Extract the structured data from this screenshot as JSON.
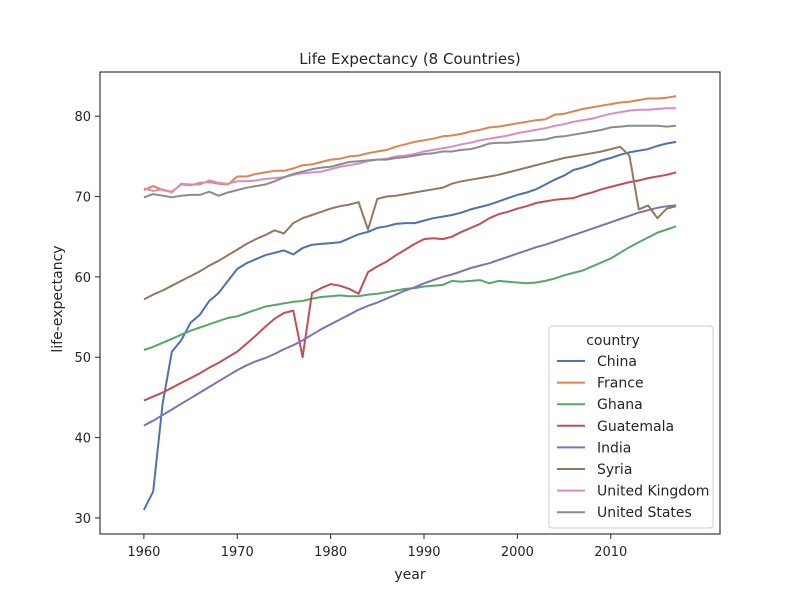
{
  "chart_data": {
    "type": "line",
    "title": "Life Expectancy (8 Countries)",
    "xlabel": "year",
    "ylabel": "life-expectancy",
    "xlim": [
      1955.3,
      2021.7
    ],
    "ylim": [
      28.0,
      85.5
    ],
    "xticks": [
      1960,
      1970,
      1980,
      1990,
      2000,
      2010
    ],
    "yticks": [
      30,
      40,
      50,
      60,
      70,
      80
    ],
    "grid": false,
    "legend": {
      "title": "country",
      "placement": "lower-right"
    },
    "x": [
      1960,
      1961,
      1962,
      1963,
      1964,
      1965,
      1966,
      1967,
      1968,
      1969,
      1970,
      1971,
      1972,
      1973,
      1974,
      1975,
      1976,
      1977,
      1978,
      1979,
      1980,
      1981,
      1982,
      1983,
      1984,
      1985,
      1986,
      1987,
      1988,
      1989,
      1990,
      1991,
      1992,
      1993,
      1994,
      1995,
      1996,
      1997,
      1998,
      1999,
      2000,
      2001,
      2002,
      2003,
      2004,
      2005,
      2006,
      2007,
      2008,
      2009,
      2010,
      2011,
      2012,
      2013,
      2014,
      2015,
      2016,
      2017
    ],
    "series": [
      {
        "name": "China",
        "color": "#4c72b0",
        "values": [
          31.0,
          33.3,
          44.2,
          50.7,
          52.1,
          54.3,
          55.3,
          57.0,
          58.0,
          59.5,
          61.0,
          61.7,
          62.2,
          62.7,
          63.0,
          63.3,
          62.8,
          63.6,
          64.0,
          64.1,
          64.2,
          64.3,
          64.8,
          65.3,
          65.6,
          66.1,
          66.3,
          66.6,
          66.7,
          66.7,
          67.0,
          67.3,
          67.5,
          67.7,
          68.0,
          68.4,
          68.7,
          69.0,
          69.4,
          69.8,
          70.2,
          70.5,
          70.9,
          71.5,
          72.1,
          72.6,
          73.3,
          73.6,
          74.0,
          74.5,
          74.8,
          75.2,
          75.5,
          75.7,
          75.9,
          76.3,
          76.6,
          76.8
        ]
      },
      {
        "name": "France",
        "color": "#dd8452",
        "values": [
          70.8,
          71.3,
          70.8,
          70.6,
          71.5,
          71.4,
          71.7,
          71.8,
          71.6,
          71.5,
          72.5,
          72.5,
          72.8,
          73.0,
          73.2,
          73.2,
          73.5,
          73.9,
          74.0,
          74.3,
          74.6,
          74.7,
          75.0,
          75.1,
          75.4,
          75.6,
          75.8,
          76.2,
          76.5,
          76.8,
          77.0,
          77.2,
          77.5,
          77.6,
          77.8,
          78.1,
          78.3,
          78.6,
          78.7,
          78.9,
          79.1,
          79.3,
          79.5,
          79.6,
          80.2,
          80.3,
          80.6,
          80.9,
          81.1,
          81.3,
          81.5,
          81.7,
          81.8,
          82.0,
          82.2,
          82.2,
          82.3,
          82.5
        ]
      },
      {
        "name": "Ghana",
        "color": "#55a868",
        "values": [
          50.9,
          51.3,
          51.8,
          52.3,
          52.8,
          53.3,
          53.7,
          54.1,
          54.5,
          54.9,
          55.1,
          55.5,
          55.9,
          56.3,
          56.5,
          56.7,
          56.9,
          57.0,
          57.3,
          57.5,
          57.6,
          57.7,
          57.6,
          57.6,
          57.8,
          57.9,
          58.1,
          58.3,
          58.5,
          58.6,
          58.8,
          58.9,
          59.0,
          59.5,
          59.4,
          59.5,
          59.6,
          59.2,
          59.5,
          59.4,
          59.3,
          59.2,
          59.3,
          59.5,
          59.8,
          60.2,
          60.5,
          60.8,
          61.3,
          61.8,
          62.3,
          63.0,
          63.7,
          64.3,
          64.9,
          65.5,
          65.9,
          66.3
        ]
      },
      {
        "name": "Guatemala",
        "color": "#c44e52",
        "values": [
          44.6,
          45.1,
          45.6,
          46.2,
          46.8,
          47.4,
          48.0,
          48.7,
          49.3,
          50.0,
          50.7,
          51.7,
          52.7,
          53.8,
          54.8,
          55.5,
          55.8,
          50.0,
          58.0,
          58.6,
          59.1,
          58.9,
          58.5,
          57.9,
          60.6,
          61.3,
          61.9,
          62.7,
          63.4,
          64.1,
          64.7,
          64.8,
          64.7,
          65.0,
          65.6,
          66.1,
          66.6,
          67.3,
          67.8,
          68.1,
          68.5,
          68.8,
          69.2,
          69.4,
          69.6,
          69.7,
          69.8,
          70.2,
          70.5,
          70.9,
          71.2,
          71.5,
          71.8,
          72.0,
          72.3,
          72.5,
          72.7,
          73.0
        ]
      },
      {
        "name": "India",
        "color": "#8172b2",
        "values": [
          41.5,
          42.1,
          42.8,
          43.5,
          44.2,
          44.9,
          45.6,
          46.3,
          47.0,
          47.7,
          48.4,
          49.0,
          49.5,
          49.9,
          50.4,
          51.0,
          51.5,
          52.1,
          52.8,
          53.5,
          54.1,
          54.7,
          55.3,
          55.9,
          56.4,
          56.8,
          57.3,
          57.8,
          58.3,
          58.7,
          59.2,
          59.6,
          60.0,
          60.3,
          60.7,
          61.1,
          61.4,
          61.7,
          62.1,
          62.5,
          62.9,
          63.3,
          63.7,
          64.0,
          64.4,
          64.8,
          65.2,
          65.6,
          66.0,
          66.4,
          66.8,
          67.2,
          67.6,
          68.0,
          68.3,
          68.6,
          68.8,
          68.9
        ]
      },
      {
        "name": "Syria",
        "color": "#937860",
        "values": [
          57.2,
          57.8,
          58.3,
          58.9,
          59.5,
          60.1,
          60.7,
          61.4,
          62.0,
          62.7,
          63.4,
          64.1,
          64.7,
          65.2,
          65.8,
          65.4,
          66.7,
          67.3,
          67.7,
          68.1,
          68.5,
          68.8,
          69.0,
          69.3,
          65.9,
          69.7,
          70.0,
          70.1,
          70.3,
          70.5,
          70.7,
          70.9,
          71.1,
          71.6,
          71.9,
          72.1,
          72.3,
          72.5,
          72.7,
          73.0,
          73.3,
          73.6,
          73.9,
          74.2,
          74.5,
          74.8,
          75.0,
          75.2,
          75.4,
          75.6,
          75.9,
          76.2,
          75.1,
          68.4,
          68.9,
          67.3,
          68.5,
          68.8
        ]
      },
      {
        "name": "United Kingdom",
        "color": "#da8bc3",
        "values": [
          71.0,
          70.7,
          70.9,
          70.5,
          71.6,
          71.5,
          71.5,
          72.0,
          71.7,
          71.6,
          71.9,
          71.9,
          72.0,
          72.2,
          72.3,
          72.4,
          72.7,
          72.9,
          73.0,
          73.1,
          73.4,
          73.7,
          73.9,
          74.1,
          74.4,
          74.6,
          74.7,
          75.0,
          75.1,
          75.3,
          75.6,
          75.8,
          76.0,
          76.2,
          76.5,
          76.7,
          77.0,
          77.2,
          77.4,
          77.6,
          77.9,
          78.1,
          78.3,
          78.5,
          78.8,
          79.0,
          79.3,
          79.5,
          79.7,
          80.0,
          80.3,
          80.5,
          80.7,
          80.8,
          80.8,
          80.9,
          81.0,
          81.0
        ]
      },
      {
        "name": "United States",
        "color": "#8c8c8c",
        "values": [
          69.9,
          70.3,
          70.1,
          69.9,
          70.1,
          70.2,
          70.2,
          70.6,
          70.1,
          70.5,
          70.8,
          71.1,
          71.3,
          71.5,
          71.9,
          72.4,
          72.8,
          73.1,
          73.4,
          73.6,
          73.7,
          74.0,
          74.3,
          74.4,
          74.5,
          74.6,
          74.6,
          74.8,
          74.9,
          75.1,
          75.3,
          75.4,
          75.6,
          75.6,
          75.8,
          75.9,
          76.2,
          76.6,
          76.7,
          76.7,
          76.8,
          76.9,
          77.0,
          77.1,
          77.4,
          77.5,
          77.7,
          77.9,
          78.1,
          78.3,
          78.6,
          78.7,
          78.8,
          78.8,
          78.8,
          78.8,
          78.7,
          78.8
        ]
      }
    ]
  }
}
